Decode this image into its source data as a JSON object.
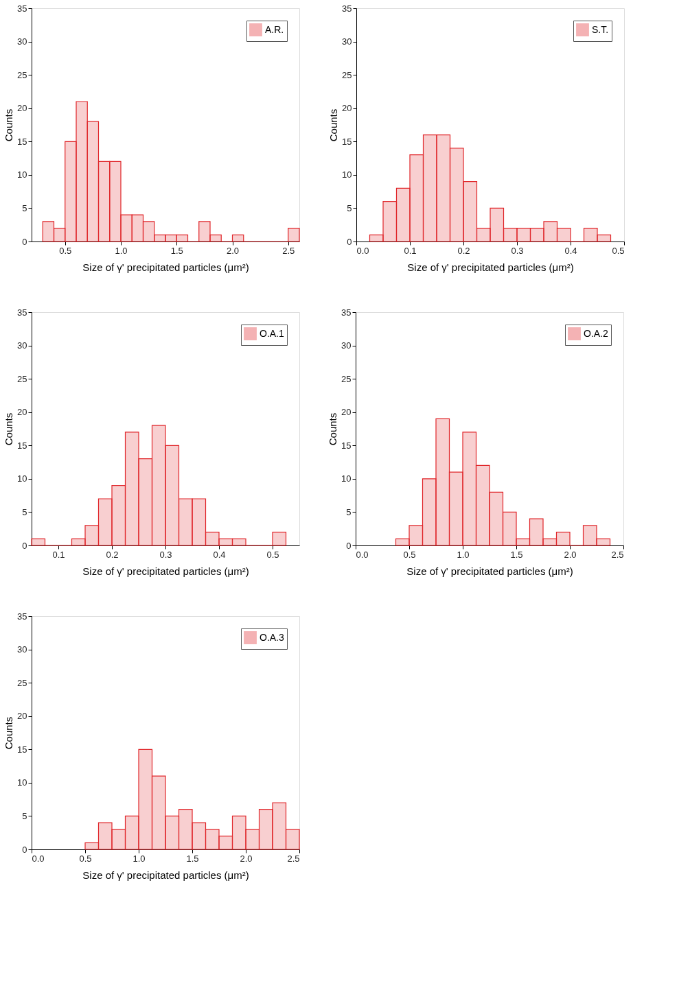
{
  "chart_data": [
    {
      "type": "histogram",
      "xlabel": "Size of γ' precipitated particles (μm²)",
      "ylabel": "Counts",
      "legend": "top right",
      "series": [
        {
          "name": "A.R.",
          "color": "#e0262a",
          "values": [
            3,
            2,
            15,
            21,
            18,
            12,
            12,
            4,
            4,
            3,
            1,
            1,
            1,
            0,
            3,
            1,
            0,
            1,
            0,
            0,
            0,
            0,
            2
          ]
        }
      ],
      "bins": [
        0.3,
        0.4,
        0.5,
        0.6,
        0.7,
        0.8,
        0.9,
        1.0,
        1.1,
        1.2,
        1.3,
        1.4,
        1.5,
        1.6,
        1.7,
        1.8,
        1.9,
        2.0,
        2.1,
        2.2,
        2.3,
        2.4,
        2.5,
        2.6
      ],
      "xlim": [
        0.2,
        2.6
      ],
      "xticks": [
        0.5,
        {
          "value": 1,
          "label": "1.0"
        },
        1.5,
        {
          "value": 2,
          "label": "2.0"
        },
        2.5
      ],
      "ylim": [
        0,
        35
      ],
      "yticks": [
        0,
        5,
        10,
        15,
        20,
        25,
        30,
        35
      ]
    },
    {
      "type": "histogram",
      "xlabel": "Size of γ' precipitated particles (μm²)",
      "ylabel": "Counts",
      "legend": "top right",
      "series": [
        {
          "name": "S.T.",
          "color": "#e0262a",
          "values": [
            1,
            6,
            8,
            13,
            16,
            16,
            14,
            9,
            2,
            5,
            2,
            2,
            2,
            3,
            2,
            0,
            2,
            1
          ]
        }
      ],
      "bins": [
        0.025,
        0.05,
        0.075,
        0.1,
        0.125,
        0.15,
        0.175,
        0.2,
        0.225,
        0.25,
        0.275,
        0.3,
        0.325,
        0.35,
        0.375,
        0.4,
        0.425,
        0.45,
        0.475
      ],
      "xlim": [
        0,
        0.5
      ],
      "xticks": [
        {
          "value": 0,
          "label": "0.0"
        },
        0.1,
        0.2,
        0.3,
        0.4,
        0.5
      ],
      "ylim": [
        0,
        35
      ],
      "yticks": [
        0,
        5,
        10,
        15,
        20,
        25,
        30,
        35
      ]
    },
    {
      "type": "histogram",
      "xlabel": "Size of γ' precipitated particles (μm²)",
      "ylabel": "Counts",
      "legend": "top right",
      "series": [
        {
          "name": "O.A.1",
          "color": "#e0262a",
          "values": [
            1,
            0,
            0,
            1,
            3,
            7,
            9,
            17,
            13,
            18,
            15,
            7,
            7,
            2,
            1,
            1,
            0,
            0,
            2
          ]
        }
      ],
      "bins": [
        0.05,
        0.075,
        0.1,
        0.125,
        0.15,
        0.175,
        0.2,
        0.225,
        0.25,
        0.275,
        0.3,
        0.325,
        0.35,
        0.375,
        0.4,
        0.425,
        0.45,
        0.475,
        0.5,
        0.525
      ],
      "xlim": [
        0.05,
        0.55
      ],
      "xticks": [
        0.1,
        0.2,
        0.3,
        0.4,
        0.5
      ],
      "ylim": [
        0,
        35
      ],
      "yticks": [
        0,
        5,
        10,
        15,
        20,
        25,
        30,
        35
      ]
    },
    {
      "type": "histogram",
      "xlabel": "Size of γ' precipitated particles (μm²)",
      "ylabel": "Counts",
      "legend": "top right",
      "series": [
        {
          "name": "O.A.2",
          "color": "#e0262a",
          "values": [
            1,
            3,
            10,
            19,
            11,
            17,
            12,
            8,
            5,
            1,
            4,
            1,
            2,
            0,
            3,
            1
          ]
        }
      ],
      "bins": [
        0.375,
        0.5,
        0.625,
        0.75,
        0.875,
        1.0,
        1.125,
        1.25,
        1.375,
        1.5,
        1.625,
        1.75,
        1.875,
        2.0,
        2.125,
        2.25,
        2.375
      ],
      "xlim": [
        0,
        2.5
      ],
      "xticks": [
        {
          "value": 0,
          "label": "0.0"
        },
        0.5,
        {
          "value": 1,
          "label": "1.0"
        },
        1.5,
        {
          "value": 2,
          "label": "2.0"
        },
        2.5
      ],
      "ylim": [
        0,
        35
      ],
      "yticks": [
        0,
        5,
        10,
        15,
        20,
        25,
        30,
        35
      ]
    },
    {
      "type": "histogram",
      "xlabel": "Size of γ' precipitated particles (μm²)",
      "ylabel": "Counts",
      "legend": "top right",
      "series": [
        {
          "name": "O.A.3",
          "color": "#e0262a",
          "values": [
            1,
            4,
            3,
            5,
            15,
            11,
            5,
            6,
            4,
            3,
            2,
            5,
            3,
            6,
            7,
            3
          ]
        }
      ],
      "bins": [
        0.5,
        0.625,
        0.75,
        0.875,
        1.0,
        1.125,
        1.25,
        1.375,
        1.5,
        1.625,
        1.75,
        1.875,
        2.0,
        2.125,
        2.25,
        2.375,
        2.5
      ],
      "xlim": [
        0,
        2.5
      ],
      "xticks": [
        {
          "value": 0,
          "label": "0.0"
        },
        0.5,
        {
          "value": 1,
          "label": "1.0"
        },
        1.5,
        {
          "value": 2,
          "label": "2.0"
        },
        2.5
      ],
      "ylim": [
        0,
        35
      ],
      "yticks": [
        0,
        5,
        10,
        15,
        20,
        25,
        30,
        35
      ]
    }
  ]
}
